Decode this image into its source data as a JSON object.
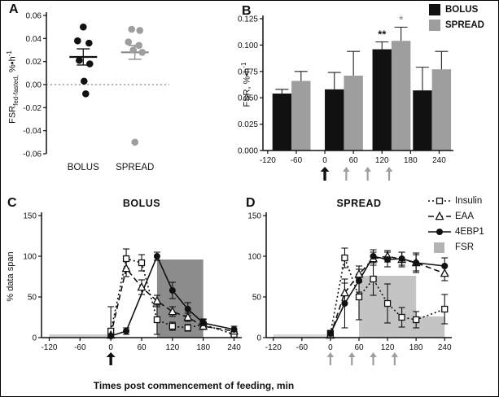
{
  "figure": {
    "xlabel": "Times post commencement of feeding, min",
    "panel_labels": {
      "A": "A",
      "B": "B",
      "C": "C",
      "D": "D"
    }
  },
  "legend": {
    "entries": [
      {
        "label": "Insulin",
        "marker": "square-open",
        "line": "dotted"
      },
      {
        "label": "EAA",
        "marker": "triangle-open",
        "line": "dashed"
      },
      {
        "label": "4EBP1",
        "marker": "circle-filled",
        "line": "solid"
      },
      {
        "label": "FSR",
        "marker": "rect-filled",
        "color": "#b3b3b3"
      }
    ]
  },
  "chart_data": [
    {
      "id": "A",
      "type": "scatter",
      "ylabel": "FSR fed-fasted, %•h-1",
      "ylabel_parts": {
        "main": "FSR",
        "sub": "fed-fasted,",
        "units": " %•h",
        "sup": "-1"
      },
      "ylim": [
        -0.06,
        0.06
      ],
      "yticks": [
        0.06,
        0.04,
        0.02,
        0.0,
        -0.02,
        -0.04,
        -0.06
      ],
      "ytick_decimals": 2,
      "zero_line": 0,
      "groups": [
        {
          "name": "BOLUS",
          "color": "#111111",
          "line_color": "#111111",
          "mean": 0.024,
          "sem": 0.007,
          "points": [
            {
              "dx": 0,
              "y": 0.05
            },
            {
              "dx": -7,
              "y": 0.038
            },
            {
              "dx": 7,
              "y": 0.036
            },
            {
              "dx": -5,
              "y": 0.021
            },
            {
              "dx": 8,
              "y": 0.018
            },
            {
              "dx": 1,
              "y": 0.003
            },
            {
              "dx": 3,
              "y": -0.008
            }
          ]
        },
        {
          "name": "SPREAD",
          "color": "#9e9e9e",
          "line_color": "#8a8a8a",
          "mean": 0.028,
          "sem": 0.006,
          "points": [
            {
              "dx": -4,
              "y": 0.048
            },
            {
              "dx": 6,
              "y": 0.047
            },
            {
              "dx": -8,
              "y": 0.037
            },
            {
              "dx": 5,
              "y": 0.034
            },
            {
              "dx": -2,
              "y": 0.03
            },
            {
              "dx": 9,
              "y": 0.028
            },
            {
              "dx": 0,
              "y": -0.05
            }
          ]
        }
      ]
    },
    {
      "id": "B",
      "type": "bar",
      "ylabel": "FSR, %•h-1",
      "ylabel_parts": {
        "main": "FSR, %•h",
        "sup": "-1"
      },
      "ylim": [
        0,
        0.125
      ],
      "yticks": [
        0.0,
        0.025,
        0.05,
        0.075,
        0.1,
        0.125
      ],
      "ytick_decimals": 3,
      "xlim": [
        -130,
        270
      ],
      "xticks": [
        -120,
        -60,
        0,
        60,
        120,
        180,
        240
      ],
      "legend": [
        {
          "label": "BOLUS",
          "color": "#111111"
        },
        {
          "label": "SPREAD",
          "color": "#9e9e9e"
        }
      ],
      "series": [
        {
          "name": "BOLUS",
          "color": "#111111",
          "bars": [
            {
              "x0": -110,
              "x1": -70,
              "v": 0.054,
              "err": 0.004
            },
            {
              "x0": 0,
              "x1": 40,
              "v": 0.058,
              "err": 0.016
            },
            {
              "x0": 100,
              "x1": 140,
              "v": 0.096,
              "err": 0.007,
              "sig": "**",
              "sig_color": "#111111"
            },
            {
              "x0": 185,
              "x1": 225,
              "v": 0.057,
              "err": 0.022
            }
          ]
        },
        {
          "name": "SPREAD",
          "color": "#9e9e9e",
          "bars": [
            {
              "x0": -70,
              "x1": -30,
              "v": 0.066,
              "err": 0.009
            },
            {
              "x0": 40,
              "x1": 80,
              "v": 0.071,
              "err": 0.023
            },
            {
              "x0": 140,
              "x1": 180,
              "v": 0.104,
              "err": 0.013,
              "sig": "*",
              "sig_color": "#9e9e9e"
            },
            {
              "x0": 225,
              "x1": 265,
              "v": 0.077,
              "err": 0.017
            }
          ]
        }
      ],
      "arrows": [
        {
          "x": 0,
          "color": "#111111",
          "bold": true
        },
        {
          "x": 45,
          "color": "#9e9e9e"
        },
        {
          "x": 90,
          "color": "#9e9e9e"
        },
        {
          "x": 135,
          "color": "#9e9e9e"
        }
      ]
    },
    {
      "id": "C",
      "type": "line",
      "title": "BOLUS",
      "ylabel": "% data span",
      "ylim": [
        0,
        150
      ],
      "yticks": [
        0,
        50,
        100,
        150
      ],
      "ytick_decimals": 0,
      "xlim": [
        -135,
        255
      ],
      "xticks": [
        -120,
        -60,
        0,
        60,
        120,
        180,
        240
      ],
      "fsr_blocks": [
        {
          "x0": -120,
          "x1": 0,
          "h": 4,
          "color": "#cfcfcf"
        },
        {
          "x0": 90,
          "x1": 180,
          "h": 96,
          "color": "#8c8c8c"
        }
      ],
      "series": [
        {
          "name": "Insulin",
          "marker": "square-open",
          "line": "dotted",
          "points": [
            {
              "x": 0,
              "y": 8,
              "e": 30
            },
            {
              "x": 30,
              "y": 97,
              "e": 12
            },
            {
              "x": 60,
              "y": 92,
              "e": 10
            },
            {
              "x": 90,
              "y": 22,
              "e": 18
            },
            {
              "x": 120,
              "y": 14,
              "e": 5
            },
            {
              "x": 150,
              "y": 12,
              "e": 4
            },
            {
              "x": 180,
              "y": 16,
              "e": 6
            },
            {
              "x": 240,
              "y": 4,
              "e": 3
            }
          ]
        },
        {
          "name": "EAA",
          "marker": "triangle-open",
          "line": "dashed",
          "points": [
            {
              "x": 0,
              "y": 3,
              "e": 3
            },
            {
              "x": 30,
              "y": 85,
              "e": 10
            },
            {
              "x": 60,
              "y": 62,
              "e": 9
            },
            {
              "x": 90,
              "y": 45,
              "e": 7
            },
            {
              "x": 120,
              "y": 32,
              "e": 6
            },
            {
              "x": 150,
              "y": 25,
              "e": 5
            },
            {
              "x": 180,
              "y": 14,
              "e": 4
            },
            {
              "x": 240,
              "y": 8,
              "e": 3
            }
          ]
        },
        {
          "name": "4EBP1",
          "marker": "circle-filled",
          "line": "solid",
          "points": [
            {
              "x": 0,
              "y": 2,
              "e": 2
            },
            {
              "x": 30,
              "y": 8,
              "e": 4
            },
            {
              "x": 90,
              "y": 100,
              "e": 5
            },
            {
              "x": 120,
              "y": 58,
              "e": 10
            },
            {
              "x": 150,
              "y": 35,
              "e": 8
            },
            {
              "x": 180,
              "y": 18,
              "e": 5
            },
            {
              "x": 240,
              "y": 10,
              "e": 4
            }
          ]
        }
      ],
      "arrows": [
        {
          "x": 0,
          "color": "#111111",
          "bold": true
        }
      ]
    },
    {
      "id": "D",
      "type": "line",
      "title": "SPREAD",
      "ylim": [
        0,
        150
      ],
      "yticks": [
        0,
        50,
        100,
        150
      ],
      "ytick_decimals": 0,
      "xlim": [
        -135,
        255
      ],
      "xticks": [
        -120,
        -60,
        0,
        60,
        120,
        180,
        240
      ],
      "fsr_blocks": [
        {
          "x0": -120,
          "x1": 0,
          "h": 4,
          "color": "#d9d9d9"
        },
        {
          "x0": 60,
          "x1": 180,
          "h": 76,
          "color": "#c4c4c4"
        },
        {
          "x0": 180,
          "x1": 240,
          "h": 26,
          "color": "#c4c4c4"
        }
      ],
      "series": [
        {
          "name": "Insulin",
          "marker": "square-open",
          "line": "dotted",
          "points": [
            {
              "x": 0,
              "y": 5,
              "e": 4
            },
            {
              "x": 30,
              "y": 98,
              "e": 12
            },
            {
              "x": 60,
              "y": 50,
              "e": 28
            },
            {
              "x": 90,
              "y": 72,
              "e": 20
            },
            {
              "x": 120,
              "y": 42,
              "e": 24
            },
            {
              "x": 150,
              "y": 25,
              "e": 12
            },
            {
              "x": 180,
              "y": 22,
              "e": 10
            },
            {
              "x": 240,
              "y": 35,
              "e": 18
            }
          ]
        },
        {
          "name": "EAA",
          "marker": "triangle-open",
          "line": "dashed",
          "points": [
            {
              "x": 0,
              "y": 3,
              "e": 3
            },
            {
              "x": 30,
              "y": 55,
              "e": 12
            },
            {
              "x": 60,
              "y": 78,
              "e": 10
            },
            {
              "x": 90,
              "y": 97,
              "e": 8
            },
            {
              "x": 120,
              "y": 100,
              "e": 7
            },
            {
              "x": 150,
              "y": 96,
              "e": 9
            },
            {
              "x": 180,
              "y": 92,
              "e": 10
            },
            {
              "x": 240,
              "y": 79,
              "e": 9
            }
          ]
        },
        {
          "name": "4EBP1",
          "marker": "circle-filled",
          "line": "solid",
          "points": [
            {
              "x": 0,
              "y": 5,
              "e": 3
            },
            {
              "x": 30,
              "y": 42,
              "e": 30
            },
            {
              "x": 60,
              "y": 70,
              "e": 14
            },
            {
              "x": 90,
              "y": 100,
              "e": 8
            },
            {
              "x": 120,
              "y": 96,
              "e": 9
            },
            {
              "x": 150,
              "y": 97,
              "e": 8
            },
            {
              "x": 180,
              "y": 92,
              "e": 12
            },
            {
              "x": 240,
              "y": 88,
              "e": 10
            }
          ]
        }
      ],
      "arrows": [
        {
          "x": 0,
          "color": "#9e9e9e"
        },
        {
          "x": 45,
          "color": "#9e9e9e"
        },
        {
          "x": 90,
          "color": "#9e9e9e"
        },
        {
          "x": 135,
          "color": "#9e9e9e"
        }
      ]
    }
  ]
}
